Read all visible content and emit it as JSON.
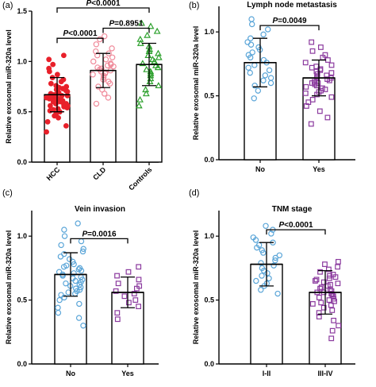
{
  "colors": {
    "hcc": "#e8202a",
    "cld": "#f08a9a",
    "controls": "#2ca02c",
    "blue": "#5aa5d8",
    "purple": "#8b3a9e",
    "axis": "#000000"
  },
  "chart_data": [
    {
      "panel": "(a)",
      "type": "scatter",
      "title": "",
      "ylabel": "Relative exosomal miR-320a level",
      "ylim": [
        0,
        1.5
      ],
      "yticks": [
        "0.0",
        "0.5",
        "1.0",
        "1.5"
      ],
      "categories": [
        "HCC",
        "CLD",
        "Controls"
      ],
      "xtick_rotation": -45,
      "groups": [
        {
          "name": "HCC",
          "mean": 0.67,
          "sd": 0.17,
          "marker": "circle-filled",
          "color": "#e8202a",
          "values": [
            0.3,
            0.36,
            0.4,
            0.44,
            0.46,
            0.48,
            0.5,
            0.51,
            0.52,
            0.53,
            0.54,
            0.55,
            0.56,
            0.56,
            0.57,
            0.58,
            0.58,
            0.59,
            0.6,
            0.6,
            0.61,
            0.61,
            0.62,
            0.62,
            0.63,
            0.63,
            0.64,
            0.64,
            0.65,
            0.65,
            0.66,
            0.66,
            0.67,
            0.67,
            0.68,
            0.69,
            0.7,
            0.71,
            0.72,
            0.73,
            0.74,
            0.75,
            0.76,
            0.78,
            0.8,
            0.82,
            0.84,
            0.87,
            0.9,
            0.93,
            0.97,
            1.02,
            1.06
          ]
        },
        {
          "name": "CLD",
          "mean": 0.91,
          "sd": 0.17,
          "marker": "circle-open",
          "color": "#f08a9a",
          "values": [
            0.58,
            0.64,
            0.68,
            0.72,
            0.75,
            0.78,
            0.8,
            0.82,
            0.84,
            0.86,
            0.87,
            0.88,
            0.89,
            0.9,
            0.91,
            0.92,
            0.93,
            0.94,
            0.95,
            0.96,
            0.97,
            0.98,
            1.0,
            1.02,
            1.04,
            1.06,
            1.08,
            1.1,
            1.13,
            1.17,
            1.22,
            1.25
          ]
        },
        {
          "name": "Controls",
          "mean": 0.97,
          "sd": 0.21,
          "marker": "triangle-open",
          "color": "#2ca02c",
          "values": [
            0.56,
            0.62,
            0.68,
            0.72,
            0.76,
            0.8,
            0.83,
            0.86,
            0.88,
            0.9,
            0.92,
            0.94,
            0.96,
            0.98,
            1.0,
            1.02,
            1.04,
            1.06,
            1.08,
            1.1,
            1.12,
            1.15,
            1.18,
            1.22,
            1.26,
            1.3,
            1.35,
            1.38
          ]
        }
      ],
      "comparisons": [
        {
          "label": "P<0.0001",
          "from": 0,
          "to": 1,
          "y": 1.23
        },
        {
          "label": "P=0.8951",
          "from": 1,
          "to": 2,
          "y": 1.33
        },
        {
          "label": "P<0.0001",
          "from": 0,
          "to": 2,
          "y": 1.58
        }
      ]
    },
    {
      "panel": "(b)",
      "type": "scatter",
      "title": "Lymph node metastasis",
      "ylabel": "Relative exosomal miR-320a level",
      "ylim": [
        0,
        1.2
      ],
      "yticks": [
        "0.0",
        "0.5",
        "1.0"
      ],
      "categories": [
        "No",
        "Yes"
      ],
      "xtick_rotation": 0,
      "groups": [
        {
          "name": "No",
          "mean": 0.76,
          "sd": 0.19,
          "marker": "circle-open",
          "color": "#5aa5d8",
          "values": [
            0.48,
            0.54,
            0.58,
            0.6,
            0.62,
            0.64,
            0.66,
            0.68,
            0.7,
            0.72,
            0.74,
            0.76,
            0.78,
            0.8,
            0.82,
            0.84,
            0.86,
            0.88,
            0.9,
            0.92,
            0.95,
            0.98,
            1.02,
            1.06,
            1.1
          ]
        },
        {
          "name": "Yes",
          "mean": 0.64,
          "sd": 0.14,
          "marker": "square-open",
          "color": "#8b3a9e",
          "values": [
            0.28,
            0.33,
            0.38,
            0.42,
            0.45,
            0.47,
            0.49,
            0.51,
            0.52,
            0.53,
            0.54,
            0.55,
            0.56,
            0.57,
            0.58,
            0.59,
            0.6,
            0.6,
            0.61,
            0.62,
            0.63,
            0.64,
            0.64,
            0.65,
            0.66,
            0.67,
            0.68,
            0.69,
            0.7,
            0.71,
            0.72,
            0.73,
            0.74,
            0.76,
            0.78,
            0.8,
            0.82,
            0.85,
            0.88,
            0.92
          ]
        }
      ],
      "comparisons": [
        {
          "label": "P=0.0049",
          "from": 0,
          "to": 1,
          "y": 1.05
        }
      ]
    },
    {
      "panel": "(c)",
      "type": "scatter",
      "title": "Vein invasion",
      "ylabel": "Relative exosomal miR-320a level",
      "ylim": [
        0,
        1.2
      ],
      "yticks": [
        "0.0",
        "0.5",
        "1.0"
      ],
      "categories": [
        "No",
        "Yes"
      ],
      "xtick_rotation": 0,
      "groups": [
        {
          "name": "No",
          "mean": 0.7,
          "sd": 0.17,
          "marker": "circle-open",
          "color": "#5aa5d8",
          "values": [
            0.3,
            0.36,
            0.4,
            0.44,
            0.47,
            0.5,
            0.52,
            0.54,
            0.55,
            0.56,
            0.57,
            0.58,
            0.59,
            0.6,
            0.61,
            0.62,
            0.63,
            0.64,
            0.65,
            0.66,
            0.67,
            0.68,
            0.69,
            0.7,
            0.71,
            0.72,
            0.73,
            0.74,
            0.75,
            0.76,
            0.77,
            0.78,
            0.8,
            0.82,
            0.84,
            0.86,
            0.88,
            0.9,
            0.93,
            0.96,
            1.0,
            1.05,
            1.1
          ]
        },
        {
          "name": "Yes",
          "mean": 0.56,
          "sd": 0.12,
          "marker": "square-open",
          "color": "#8b3a9e",
          "values": [
            0.35,
            0.4,
            0.45,
            0.48,
            0.5,
            0.53,
            0.55,
            0.57,
            0.59,
            0.61,
            0.63,
            0.66,
            0.69,
            0.72,
            0.76
          ]
        }
      ],
      "comparisons": [
        {
          "label": "P=0.0016",
          "from": 0,
          "to": 1,
          "y": 0.98
        }
      ]
    },
    {
      "panel": "(d)",
      "type": "scatter",
      "title": "TNM stage",
      "ylabel": "Relative exosomal miR-320a level",
      "ylim": [
        0,
        1.2
      ],
      "yticks": [
        "0.0",
        "0.5",
        "1.0"
      ],
      "categories": [
        "I-II",
        "III-IV"
      ],
      "xtick_rotation": 0,
      "groups": [
        {
          "name": "I-II",
          "mean": 0.78,
          "sd": 0.17,
          "marker": "circle-open",
          "color": "#5aa5d8",
          "values": [
            0.55,
            0.58,
            0.61,
            0.63,
            0.65,
            0.67,
            0.69,
            0.71,
            0.73,
            0.75,
            0.77,
            0.79,
            0.81,
            0.83,
            0.85,
            0.87,
            0.89,
            0.91,
            0.93,
            0.95,
            0.97,
            0.99,
            1.02,
            1.05,
            1.08
          ]
        },
        {
          "name": "III-IV",
          "mean": 0.56,
          "sd": 0.17,
          "marker": "square-open",
          "color": "#8b3a9e",
          "values": [
            0.2,
            0.26,
            0.3,
            0.34,
            0.37,
            0.4,
            0.42,
            0.44,
            0.46,
            0.47,
            0.48,
            0.49,
            0.5,
            0.51,
            0.52,
            0.53,
            0.54,
            0.55,
            0.56,
            0.56,
            0.57,
            0.58,
            0.59,
            0.6,
            0.61,
            0.62,
            0.63,
            0.64,
            0.65,
            0.66,
            0.67,
            0.68,
            0.69,
            0.7,
            0.72,
            0.74,
            0.76,
            0.78,
            0.8
          ]
        }
      ],
      "comparisons": [
        {
          "label": "P<0.0001",
          "from": 0,
          "to": 1,
          "y": 1.05
        }
      ]
    }
  ]
}
